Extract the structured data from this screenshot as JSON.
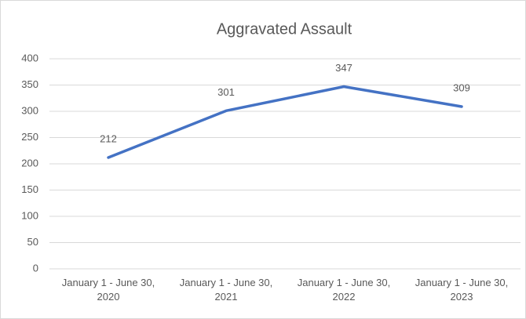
{
  "chart_data": {
    "type": "line",
    "title": "Aggravated Assault",
    "categories": [
      "January 1 - June 30, 2020",
      "January 1 - June 30, 2021",
      "January 1 - June 30, 2022",
      "January 1 - June 30, 2023"
    ],
    "series": [
      {
        "name": "Aggravated Assault",
        "color": "#4472c4",
        "values": [
          212,
          301,
          347,
          309
        ]
      }
    ],
    "ylim": [
      0,
      400
    ],
    "yticks": [
      0,
      50,
      100,
      150,
      200,
      250,
      300,
      350,
      400
    ],
    "grid": true
  }
}
